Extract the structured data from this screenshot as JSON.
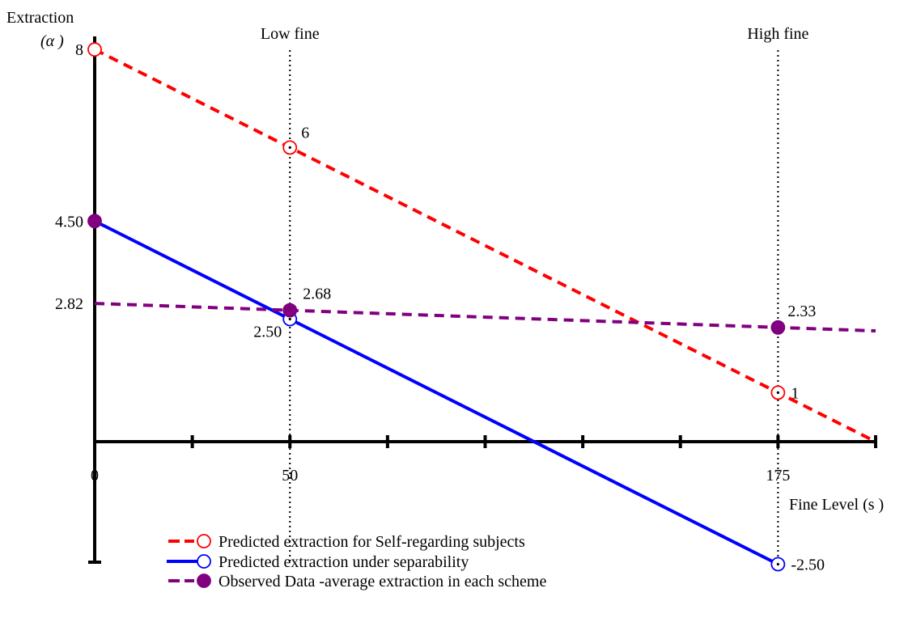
{
  "chart_data": {
    "type": "line",
    "ylabel_line1": "Extraction",
    "ylabel_line2": "(α )",
    "xlabel": "Fine Level (s )",
    "xlim": [
      0,
      200
    ],
    "ylim": [
      -3,
      8
    ],
    "x_ticks": [
      0,
      25,
      50,
      75,
      100,
      125,
      150,
      175,
      200
    ],
    "x_tick_labels": [
      {
        "x": 0,
        "label": "0"
      },
      {
        "x": 50,
        "label": "50"
      },
      {
        "x": 175,
        "label": "175"
      }
    ],
    "y_tick_labels": [
      {
        "y": 8,
        "label": "8"
      },
      {
        "y": 4.5,
        "label": "4.50"
      },
      {
        "y": 2.82,
        "label": "2.82"
      }
    ],
    "reference_lines": [
      {
        "x": 50,
        "label": "Low fine"
      },
      {
        "x": 175,
        "label": "High fine"
      }
    ],
    "series": [
      {
        "name": "Predicted extraction for Self-regarding subjects",
        "color": "#ff0000",
        "style": "dashed",
        "marker": "open-circle",
        "line": [
          [
            0,
            8
          ],
          [
            200,
            0
          ]
        ],
        "points": [
          {
            "x": 0,
            "y": 8,
            "label": ""
          },
          {
            "x": 50,
            "y": 6,
            "label": "6"
          },
          {
            "x": 175,
            "y": 1,
            "label": "1"
          }
        ]
      },
      {
        "name": "Predicted extraction under separability",
        "color": "#0000ff",
        "style": "solid",
        "marker": "open-circle",
        "line": [
          [
            0,
            4.5
          ],
          [
            175,
            -2.5
          ]
        ],
        "points": [
          {
            "x": 50,
            "y": 2.5,
            "label": "2.50"
          },
          {
            "x": 175,
            "y": -2.5,
            "label": "-2.50"
          }
        ]
      },
      {
        "name": "Observed Data -average extraction in each scheme",
        "color": "#800080",
        "style": "dashed",
        "marker": "filled-circle",
        "line": [
          [
            0,
            2.82
          ],
          [
            50,
            2.68
          ],
          [
            175,
            2.33
          ],
          [
            200,
            2.26
          ]
        ],
        "points": [
          {
            "x": 0,
            "y": 4.5,
            "label": ""
          },
          {
            "x": 50,
            "y": 2.68,
            "label": "2.68"
          },
          {
            "x": 175,
            "y": 2.33,
            "label": "2.33"
          }
        ]
      }
    ]
  }
}
